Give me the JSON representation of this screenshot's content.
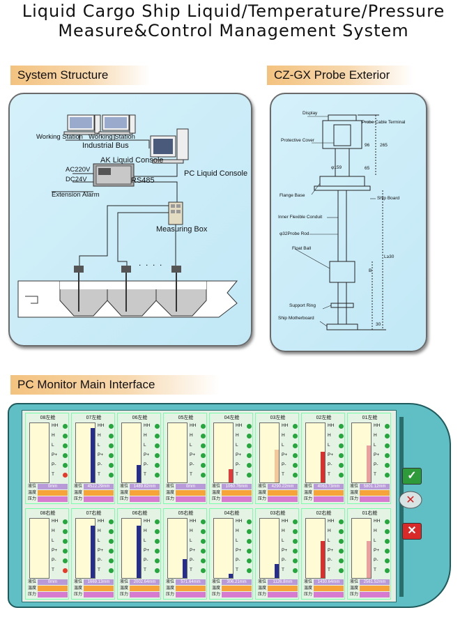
{
  "title": {
    "line1": "Liquid Cargo Ship Liquid/Temperature/Pressure",
    "line2": "Measure&Control Management System"
  },
  "sections": {
    "structure": "System Structure",
    "probe": "CZ-GX Probe Exterior",
    "monitor": "PC Monitor Main Interface"
  },
  "structure": {
    "working_station_1": "Working Station",
    "working_station_2": "Working Station",
    "industrial_bus": "Industrial Bus",
    "ak_console": "AK Liquid Console",
    "ac": "AC220V",
    "dc": "DC24V",
    "rs485": "RS485",
    "pc_console": "PC Liquid Console",
    "extension_alarm": "Extension Alarm",
    "measuring_box": "Measuring Box"
  },
  "probe": {
    "display": "Display",
    "cable_terminal": "Probe Cable Terminal",
    "protective_cover": "Protective Cover",
    "flange_base": "Flange Base",
    "ship_board": "Ship Board",
    "inner_conduit": "Inner Flexible Conduit",
    "probe_rod": "φ32Probe Rod",
    "float_ball": "Float Ball",
    "support_ring": "Support Ring",
    "motherboard": "Ship Motherboard",
    "dim_265": "265",
    "dim_96": "96",
    "dim_65": "65",
    "dim_159": "φ159",
    "dim_l": "L≥30",
    "dim_b": "B",
    "dim_30": "30"
  },
  "monitor": {
    "indicators": [
      "HH",
      "H",
      "L",
      "P+",
      "P-",
      "T"
    ],
    "row_labels": [
      "液位",
      "温度",
      "压力"
    ],
    "tanks_top": [
      {
        "name": "08左舱",
        "level": "0mm",
        "fill": 0.0
      },
      {
        "name": "07左舱",
        "level": "4522.29mm",
        "fill": 0.92
      },
      {
        "name": "06左舱",
        "level": "1489.82mm",
        "fill": 0.3
      },
      {
        "name": "05左舱",
        "level": "0mm",
        "fill": 0.0
      },
      {
        "name": "04左舱",
        "level": "1060.76mm",
        "fill": 0.22
      },
      {
        "name": "03左舱",
        "level": "4290.22mm",
        "fill": 0.55
      },
      {
        "name": "02左舱",
        "level": "4063.73mm",
        "fill": 0.52
      },
      {
        "name": "01左舱",
        "level": "5801.12mm",
        "fill": 0.62
      }
    ],
    "tanks_bottom": [
      {
        "name": "08右舱",
        "level": "0mm",
        "fill": 0.0
      },
      {
        "name": "07右舱",
        "level": "1669.13mm",
        "fill": 0.88
      },
      {
        "name": "06右舱",
        "level": "2002.64mm",
        "fill": 0.88
      },
      {
        "name": "05右舱",
        "level": "571.64mm",
        "fill": 0.32
      },
      {
        "name": "04右舱",
        "level": "306.21mm",
        "fill": 0.07
      },
      {
        "name": "03右舱",
        "level": "1126.8mm",
        "fill": 0.23
      },
      {
        "name": "02右舱",
        "level": "1430.64mm",
        "fill": 0.62
      },
      {
        "name": "01右舱",
        "level": "2561.52mm",
        "fill": 0.62
      }
    ]
  }
}
